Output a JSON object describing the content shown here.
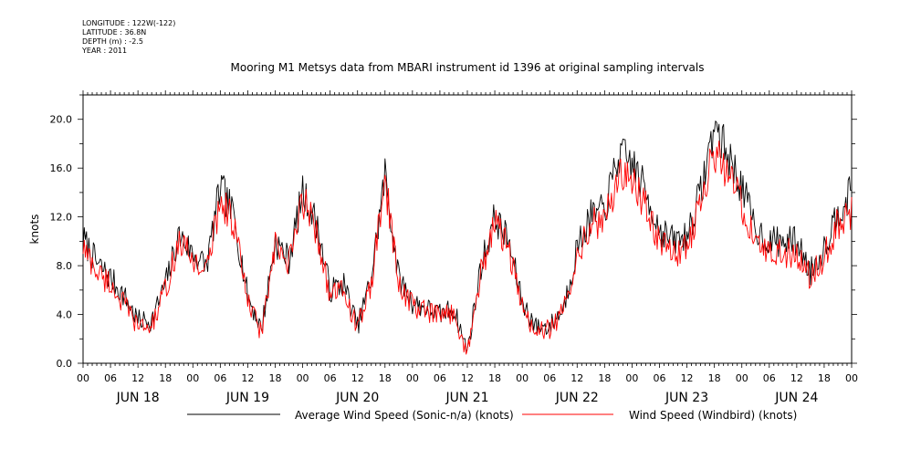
{
  "header": {
    "longitude": "LONGITUDE : 122W(-122)",
    "latitude": "LATITUDE : 36.8N",
    "depth": "DEPTH (m) : -2.5",
    "year": "YEAR : 2011"
  },
  "chart_data": {
    "type": "line",
    "title": "Mooring M1 Metsys data from MBARI instrument id 1396 at original sampling intervals",
    "xlabel": "",
    "ylabel": "knots",
    "ylim": [
      0,
      22.0
    ],
    "yticks": [
      "0.0",
      "4.0",
      "8.0",
      "12.0",
      "16.0",
      "20.0"
    ],
    "x_hour_ticks": [
      "00",
      "06",
      "12",
      "18",
      "00",
      "06",
      "12",
      "18",
      "00",
      "06",
      "12",
      "18",
      "00",
      "06",
      "12",
      "18",
      "00",
      "06",
      "12",
      "18",
      "00",
      "06",
      "12",
      "18",
      "00",
      "06",
      "12",
      "18",
      "00"
    ],
    "day_labels": [
      "JUN 18",
      "JUN 19",
      "JUN 20",
      "JUN 21",
      "JUN 22",
      "JUN 23",
      "JUN 24"
    ],
    "x_range_hours": [
      0,
      168
    ],
    "series": [
      {
        "name": "Average Wind Speed (Sonic-n/a) (knots)",
        "color": "#000000",
        "x_hours": [
          0,
          3,
          6,
          9,
          12,
          15,
          18,
          21,
          24,
          27,
          30,
          33,
          36,
          39,
          42,
          45,
          48,
          51,
          54,
          57,
          60,
          63,
          66,
          69,
          72,
          75,
          78,
          81,
          84,
          87,
          90,
          93,
          96,
          99,
          102,
          105,
          108,
          111,
          114,
          117,
          120,
          123,
          126,
          129,
          132,
          135,
          138,
          141,
          144,
          147,
          150,
          153,
          156,
          159,
          162,
          165,
          168
        ],
        "values": [
          10.2,
          8.2,
          7.0,
          5.5,
          3.5,
          3.5,
          6.5,
          10.5,
          9.0,
          8.0,
          14.5,
          12.0,
          5.5,
          2.8,
          10.0,
          8.5,
          14.0,
          11.5,
          6.0,
          6.5,
          3.0,
          7.0,
          15.5,
          7.0,
          5.0,
          4.5,
          4.0,
          4.5,
          1.0,
          8.0,
          12.0,
          10.0,
          5.0,
          3.0,
          3.0,
          4.5,
          9.5,
          12.0,
          12.5,
          17.0,
          16.5,
          14.0,
          11.0,
          10.0,
          10.5,
          14.0,
          19.5,
          17.0,
          14.5,
          11.0,
          10.0,
          10.0,
          10.0,
          7.5,
          9.5,
          12.5,
          14.0
        ]
      },
      {
        "name": "Wind Speed (Windbird) (knots)",
        "color": "#ff0000",
        "x_hours": [
          0,
          3,
          6,
          9,
          12,
          15,
          18,
          21,
          24,
          27,
          30,
          33,
          36,
          39,
          42,
          45,
          48,
          51,
          54,
          57,
          60,
          63,
          66,
          69,
          72,
          75,
          78,
          81,
          84,
          87,
          90,
          93,
          96,
          99,
          102,
          105,
          108,
          111,
          114,
          117,
          120,
          123,
          126,
          129,
          132,
          135,
          138,
          141,
          144,
          147,
          150,
          153,
          156,
          159,
          162,
          165,
          168
        ],
        "values": [
          9.5,
          7.5,
          6.5,
          4.8,
          3.0,
          3.0,
          6.0,
          10.0,
          8.5,
          7.5,
          13.5,
          11.5,
          5.0,
          2.5,
          9.5,
          8.0,
          13.5,
          11.0,
          5.5,
          6.0,
          2.8,
          6.5,
          15.0,
          6.5,
          4.8,
          4.2,
          3.8,
          4.2,
          0.8,
          7.5,
          11.5,
          9.5,
          4.5,
          2.5,
          2.8,
          4.2,
          9.0,
          11.5,
          11.5,
          15.5,
          15.0,
          13.0,
          10.0,
          9.0,
          9.5,
          13.0,
          17.5,
          15.5,
          13.0,
          10.0,
          9.0,
          9.0,
          9.0,
          7.0,
          8.8,
          11.5,
          12.5
        ]
      }
    ],
    "legend_location": "bottom"
  }
}
